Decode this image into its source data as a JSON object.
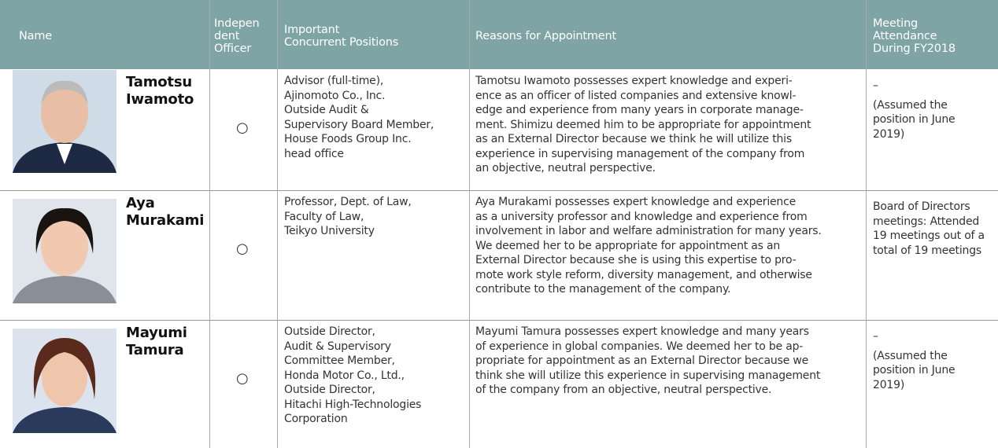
{
  "header": {
    "name": "Name",
    "independent": [
      "Indepen",
      "dent",
      "Officer"
    ],
    "positions": [
      "Important",
      "Concurrent Positions"
    ],
    "reasons": "Reasons for Appointment",
    "attendance": [
      "Meeting",
      "Attendance",
      "During FY2018"
    ]
  },
  "rows": [
    {
      "name": [
        "Tamotsu",
        "Iwamoto"
      ],
      "independent": "○",
      "positions": [
        "Advisor (full-time),",
        "Ajinomoto Co., Inc.",
        "Outside Audit &",
        "Supervisory Board Member,",
        "House Foods Group Inc.",
        "head office"
      ],
      "reasons": [
        "Tamotsu Iwamoto possesses expert knowledge and experi-",
        "ence as an officer of listed companies and extensive knowl-",
        "edge and experience from many years in corporate manage-",
        "ment. Shimizu deemed him to be appropriate for appointment",
        "as an External Director because we think he will utilize this",
        "experience in supervising management of the company from",
        "an objective, neutral perspective."
      ],
      "attendance": [
        "–",
        "(Assumed the",
        "position in June",
        "2019)"
      ]
    },
    {
      "name": [
        "Aya",
        "Murakami"
      ],
      "independent": "○",
      "positions": [
        "Professor, Dept. of Law,",
        "Faculty of Law,",
        "Teikyo University"
      ],
      "reasons": [
        "Aya Murakami possesses expert knowledge and experience",
        "as a university professor and knowledge and experience from",
        "involvement in labor and welfare administration for many years.",
        "We deemed her to be appropriate for appointment as an",
        "External Director because she is using this expertise to pro-",
        "mote work style reform, diversity management, and otherwise",
        "contribute to the management of the company."
      ],
      "attendance": [
        "Board of Directors",
        "meetings: Attended",
        "19 meetings out of a",
        "total of 19 meetings"
      ]
    },
    {
      "name": [
        "Mayumi",
        "Tamura"
      ],
      "independent": "○",
      "positions": [
        "Outside Director,",
        "Audit & Supervisory",
        "Committee Member,",
        "Honda Motor Co., Ltd.,",
        "Outside Director,",
        "Hitachi High-Technologies",
        "Corporation"
      ],
      "reasons": [
        "Mayumi Tamura possesses expert knowledge and many years",
        "of experience in global companies. We deemed her to be ap-",
        "propriate for appointment as an External Director because we",
        "think she will utilize this experience in supervising management",
        "of the company from an objective, neutral perspective."
      ],
      "attendance": [
        "–",
        "(Assumed the",
        "position in June",
        "2019)"
      ]
    }
  ]
}
